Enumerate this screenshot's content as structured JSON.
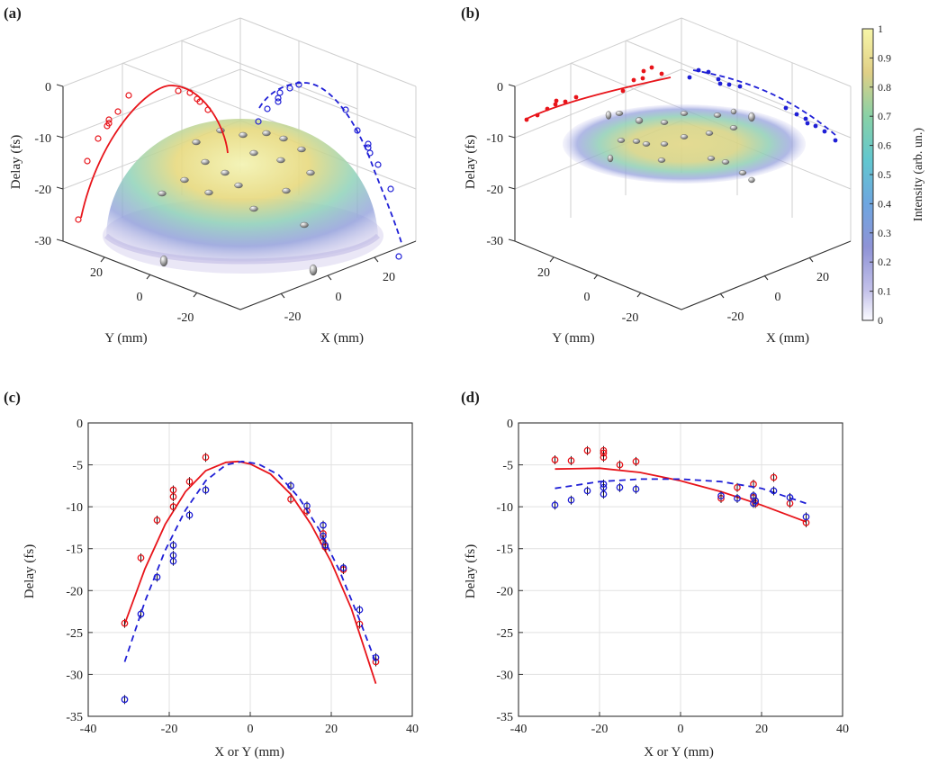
{
  "panels": {
    "a": {
      "label": "(a)",
      "xlabel": "X (mm)",
      "ylabel": "Y (mm)",
      "zlabel": "Delay (fs)",
      "z_ticks": [
        "0",
        "-10",
        "-20",
        "-30"
      ],
      "y_ticks": [
        "20",
        "0",
        "-20"
      ],
      "x_ticks": [
        "-20",
        "0",
        "20"
      ]
    },
    "b": {
      "label": "(b)",
      "xlabel": "X (mm)",
      "ylabel": "Y (mm)",
      "zlabel": "Delay (fs)",
      "z_ticks": [
        "0",
        "-10",
        "-20",
        "-30"
      ],
      "y_ticks": [
        "20",
        "0",
        "-20"
      ],
      "x_ticks": [
        "-20",
        "0",
        "20"
      ]
    },
    "c": {
      "label": "(c)",
      "xlabel": "X or Y (mm)",
      "ylabel": "Delay (fs)"
    },
    "d": {
      "label": "(d)",
      "xlabel": "X or Y (mm)",
      "ylabel": "Delay (fs)"
    }
  },
  "colorbar": {
    "label": "Intensity (arb. un.)",
    "ticks": [
      "0",
      "0.1",
      "0.2",
      "0.3",
      "0.4",
      "0.5",
      "0.6",
      "0.7",
      "0.8",
      "0.9",
      "1"
    ]
  },
  "colors": {
    "red_series": "#e8141a",
    "blue_series": "#1f1fd6"
  },
  "chart_data": [
    {
      "type": "scatter",
      "panel": "c",
      "xlim": [
        -40,
        40
      ],
      "ylim": [
        -35,
        0
      ],
      "xticks": [
        -40,
        -20,
        0,
        20,
        40
      ],
      "yticks": [
        0,
        -5,
        -10,
        -15,
        -20,
        -25,
        -30,
        -35
      ],
      "grid": true,
      "series": [
        {
          "color": "red",
          "marker": "circle",
          "line": "solid",
          "points": [
            [
              -31,
              -23.9
            ],
            [
              -27,
              -16.1
            ],
            [
              -23,
              -11.6
            ],
            [
              -19,
              -10
            ],
            [
              -19,
              -8.8
            ],
            [
              -19,
              -8
            ],
            [
              -15,
              -7
            ],
            [
              -11,
              -4.1
            ],
            [
              10,
              -9.1
            ],
            [
              14,
              -10.5
            ],
            [
              18,
              -13.2
            ],
            [
              18,
              -14.2
            ],
            [
              18.5,
              -14.8
            ],
            [
              23,
              -17.5
            ],
            [
              27,
              -24
            ],
            [
              31,
              -28.5
            ]
          ],
          "fit": [
            [
              -31,
              -24
            ],
            [
              -26,
              -17.4
            ],
            [
              -21,
              -12.1
            ],
            [
              -16,
              -8.2
            ],
            [
              -11,
              -5.7
            ],
            [
              -6,
              -4.7
            ],
            [
              -3,
              -4.6
            ],
            [
              0,
              -4.9
            ],
            [
              5,
              -6.1
            ],
            [
              10,
              -8.5
            ],
            [
              15,
              -12.1
            ],
            [
              20,
              -16.6
            ],
            [
              25,
              -22.2
            ],
            [
              31,
              -31.1
            ]
          ]
        },
        {
          "color": "blue",
          "marker": "circle",
          "line": "dashed",
          "points": [
            [
              -31,
              -33
            ],
            [
              -27,
              -22.8
            ],
            [
              -23,
              -18.4
            ],
            [
              -19,
              -16.5
            ],
            [
              -19,
              -15.8
            ],
            [
              -19,
              -14.6
            ],
            [
              -15,
              -11
            ],
            [
              -11,
              -8
            ],
            [
              10,
              -7.5
            ],
            [
              14,
              -9.9
            ],
            [
              18,
              -12.2
            ],
            [
              18,
              -13.5
            ],
            [
              18.5,
              -14.6
            ],
            [
              23,
              -17.3
            ],
            [
              27,
              -22.3
            ],
            [
              31,
              -28
            ]
          ],
          "fit": [
            [
              -31,
              -28.5
            ],
            [
              -26,
              -21.3
            ],
            [
              -21,
              -15.2
            ],
            [
              -16,
              -10.4
            ],
            [
              -11,
              -6.9
            ],
            [
              -6,
              -5
            ],
            [
              -2,
              -4.6
            ],
            [
              2,
              -4.9
            ],
            [
              7,
              -6.2
            ],
            [
              12,
              -8.9
            ],
            [
              17,
              -12.7
            ],
            [
              22,
              -17.6
            ],
            [
              27,
              -23.5
            ],
            [
              31,
              -28.6
            ]
          ]
        }
      ]
    },
    {
      "type": "scatter",
      "panel": "d",
      "xlim": [
        -40,
        40
      ],
      "ylim": [
        -35,
        0
      ],
      "xticks": [
        -40,
        -20,
        0,
        20,
        40
      ],
      "yticks": [
        0,
        -5,
        -10,
        -15,
        -20,
        -25,
        -30,
        -35
      ],
      "grid": true,
      "series": [
        {
          "color": "red",
          "marker": "circle",
          "line": "solid",
          "points": [
            [
              -31,
              -4.4
            ],
            [
              -27,
              -4.5
            ],
            [
              -23,
              -3.3
            ],
            [
              -19,
              -3.3
            ],
            [
              -19,
              -3.6
            ],
            [
              -19,
              -4.1
            ],
            [
              -15,
              -5
            ],
            [
              -11,
              -4.6
            ],
            [
              10,
              -9
            ],
            [
              14,
              -7.7
            ],
            [
              18,
              -7.3
            ],
            [
              18,
              -8.9
            ],
            [
              18.5,
              -9.6
            ],
            [
              23,
              -6.5
            ],
            [
              27,
              -9.6
            ],
            [
              31,
              -11.9
            ]
          ],
          "fit": [
            [
              -31,
              -5.5
            ],
            [
              -20,
              -5.4
            ],
            [
              -10,
              -5.9
            ],
            [
              0,
              -6.9
            ],
            [
              10,
              -8.2
            ],
            [
              20,
              -9.8
            ],
            [
              31,
              -11.8
            ]
          ]
        },
        {
          "color": "blue",
          "marker": "circle",
          "line": "dashed",
          "points": [
            [
              -31,
              -9.8
            ],
            [
              -27,
              -9.2
            ],
            [
              -23,
              -8.1
            ],
            [
              -19,
              -8.5
            ],
            [
              -19,
              -7.7
            ],
            [
              -19,
              -7.3
            ],
            [
              -15,
              -7.7
            ],
            [
              -11,
              -7.9
            ],
            [
              10,
              -8.7
            ],
            [
              14,
              -9
            ],
            [
              18,
              -8.7
            ],
            [
              18,
              -9.6
            ],
            [
              18.5,
              -9.3
            ],
            [
              23,
              -8.1
            ],
            [
              27,
              -8.9
            ],
            [
              31,
              -11.2
            ]
          ],
          "fit": [
            [
              -31,
              -7.8
            ],
            [
              -20,
              -7
            ],
            [
              -10,
              -6.7
            ],
            [
              0,
              -6.7
            ],
            [
              10,
              -7
            ],
            [
              20,
              -7.8
            ],
            [
              31,
              -9.6
            ]
          ]
        }
      ]
    }
  ]
}
